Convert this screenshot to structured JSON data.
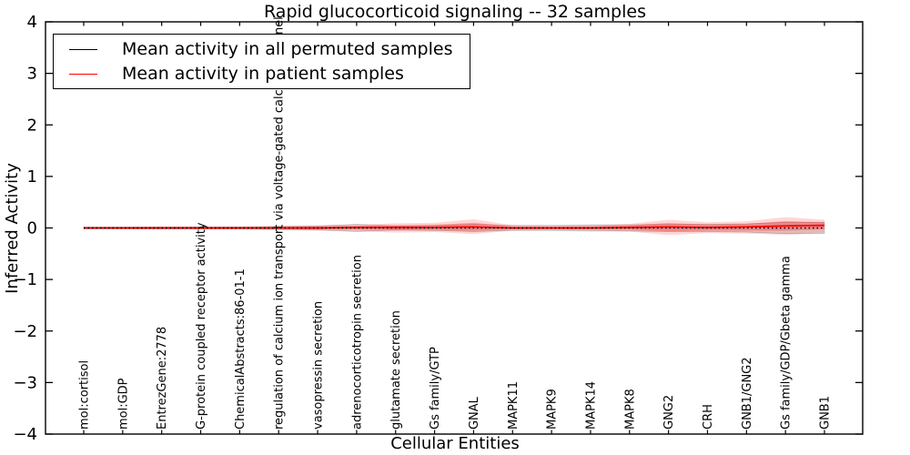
{
  "figure": {
    "title": "Rapid glucocorticoid signaling -- 32 samples"
  },
  "legend": {
    "items": [
      {
        "label": "Mean activity in all permuted samples",
        "color": "#000000"
      },
      {
        "label": "Mean activity in patient samples",
        "color": "#ff0000"
      }
    ],
    "position": "upper left"
  },
  "colors": {
    "permuted_line": "#000000",
    "patient_line": "#ff0000",
    "patient_band": "rgba(255,0,0,0.16)",
    "patient_band_inner": "rgba(255,0,0,0.26)",
    "permuted_band": "rgba(0,0,0,0.13)",
    "axis": "#000000",
    "background": "#ffffff"
  },
  "chart_data": {
    "type": "line",
    "title": "Rapid glucocorticoid signaling -- 32 samples",
    "xlabel": "Cellular Entities",
    "ylabel": "Inferred Activity",
    "ylim": [
      -4,
      4
    ],
    "y_tick_values": [
      4,
      3,
      2,
      1,
      0,
      -1,
      -2,
      -3,
      -4
    ],
    "y_tick_labels": [
      "4",
      "3",
      "2",
      "1",
      "0",
      "−1",
      "−2",
      "−3",
      "−4"
    ],
    "grid": false,
    "legend_position": "upper left",
    "categories": [
      "mol:cortisol",
      "mol:GDP",
      "EntrezGene:2778",
      "G-protein coupled receptor activity",
      "ChemicalAbstracts:86-01-1",
      "regulation of calcium ion transport via voltage-gated calcium channel",
      "vasopressin secretion",
      "adrenocorticotropin secretion",
      "glutamate secretion",
      "Gs family/GTP",
      "GNAL",
      "MAPK11",
      "MAPK9",
      "MAPK14",
      "MAPK8",
      "GNG2",
      "CRH",
      "GNB1/GNG2",
      "Gs family/GDP/Gbeta gamma",
      "GNB1"
    ],
    "series": [
      {
        "name": "Mean activity in all permuted samples",
        "color": "#000000",
        "style": "dotted",
        "values": [
          0,
          0,
          0,
          0,
          0,
          0,
          0,
          0,
          0,
          0,
          0,
          0,
          0,
          0,
          0,
          0,
          0,
          0,
          0,
          0
        ],
        "band": {
          "name": "permuted std",
          "upper": [
            0.02,
            0.02,
            0.02,
            0.02,
            0.02,
            0.03,
            0.04,
            0.07,
            0.04,
            0.05,
            0.07,
            0.05,
            0.05,
            0.06,
            0.06,
            0.07,
            0.07,
            0.08,
            0.11,
            0.11
          ],
          "lower": [
            -0.02,
            -0.02,
            -0.02,
            -0.02,
            -0.02,
            -0.03,
            -0.04,
            -0.07,
            -0.04,
            -0.05,
            -0.07,
            -0.05,
            -0.05,
            -0.06,
            -0.06,
            -0.07,
            -0.07,
            -0.08,
            -0.11,
            -0.11
          ]
        }
      },
      {
        "name": "Mean activity in patient samples",
        "color": "#ff0000",
        "style": "solid",
        "values": [
          0,
          0,
          0,
          0,
          0,
          0,
          0,
          0.01,
          0.01,
          0.01,
          0.02,
          0,
          0,
          0,
          0.01,
          0.02,
          0.01,
          0.02,
          0.04,
          0.05
        ],
        "band": {
          "name": "patient std",
          "upper": [
            0.02,
            0.02,
            0.03,
            0.03,
            0.03,
            0.04,
            0.05,
            0.06,
            0.09,
            0.1,
            0.17,
            0.05,
            0.04,
            0.05,
            0.08,
            0.16,
            0.11,
            0.13,
            0.21,
            0.16
          ],
          "lower": [
            -0.02,
            -0.02,
            -0.03,
            -0.03,
            -0.03,
            -0.04,
            -0.05,
            -0.06,
            -0.09,
            -0.08,
            -0.12,
            -0.05,
            -0.04,
            -0.05,
            -0.07,
            -0.14,
            -0.1,
            -0.11,
            -0.13,
            -0.09
          ]
        }
      }
    ]
  }
}
